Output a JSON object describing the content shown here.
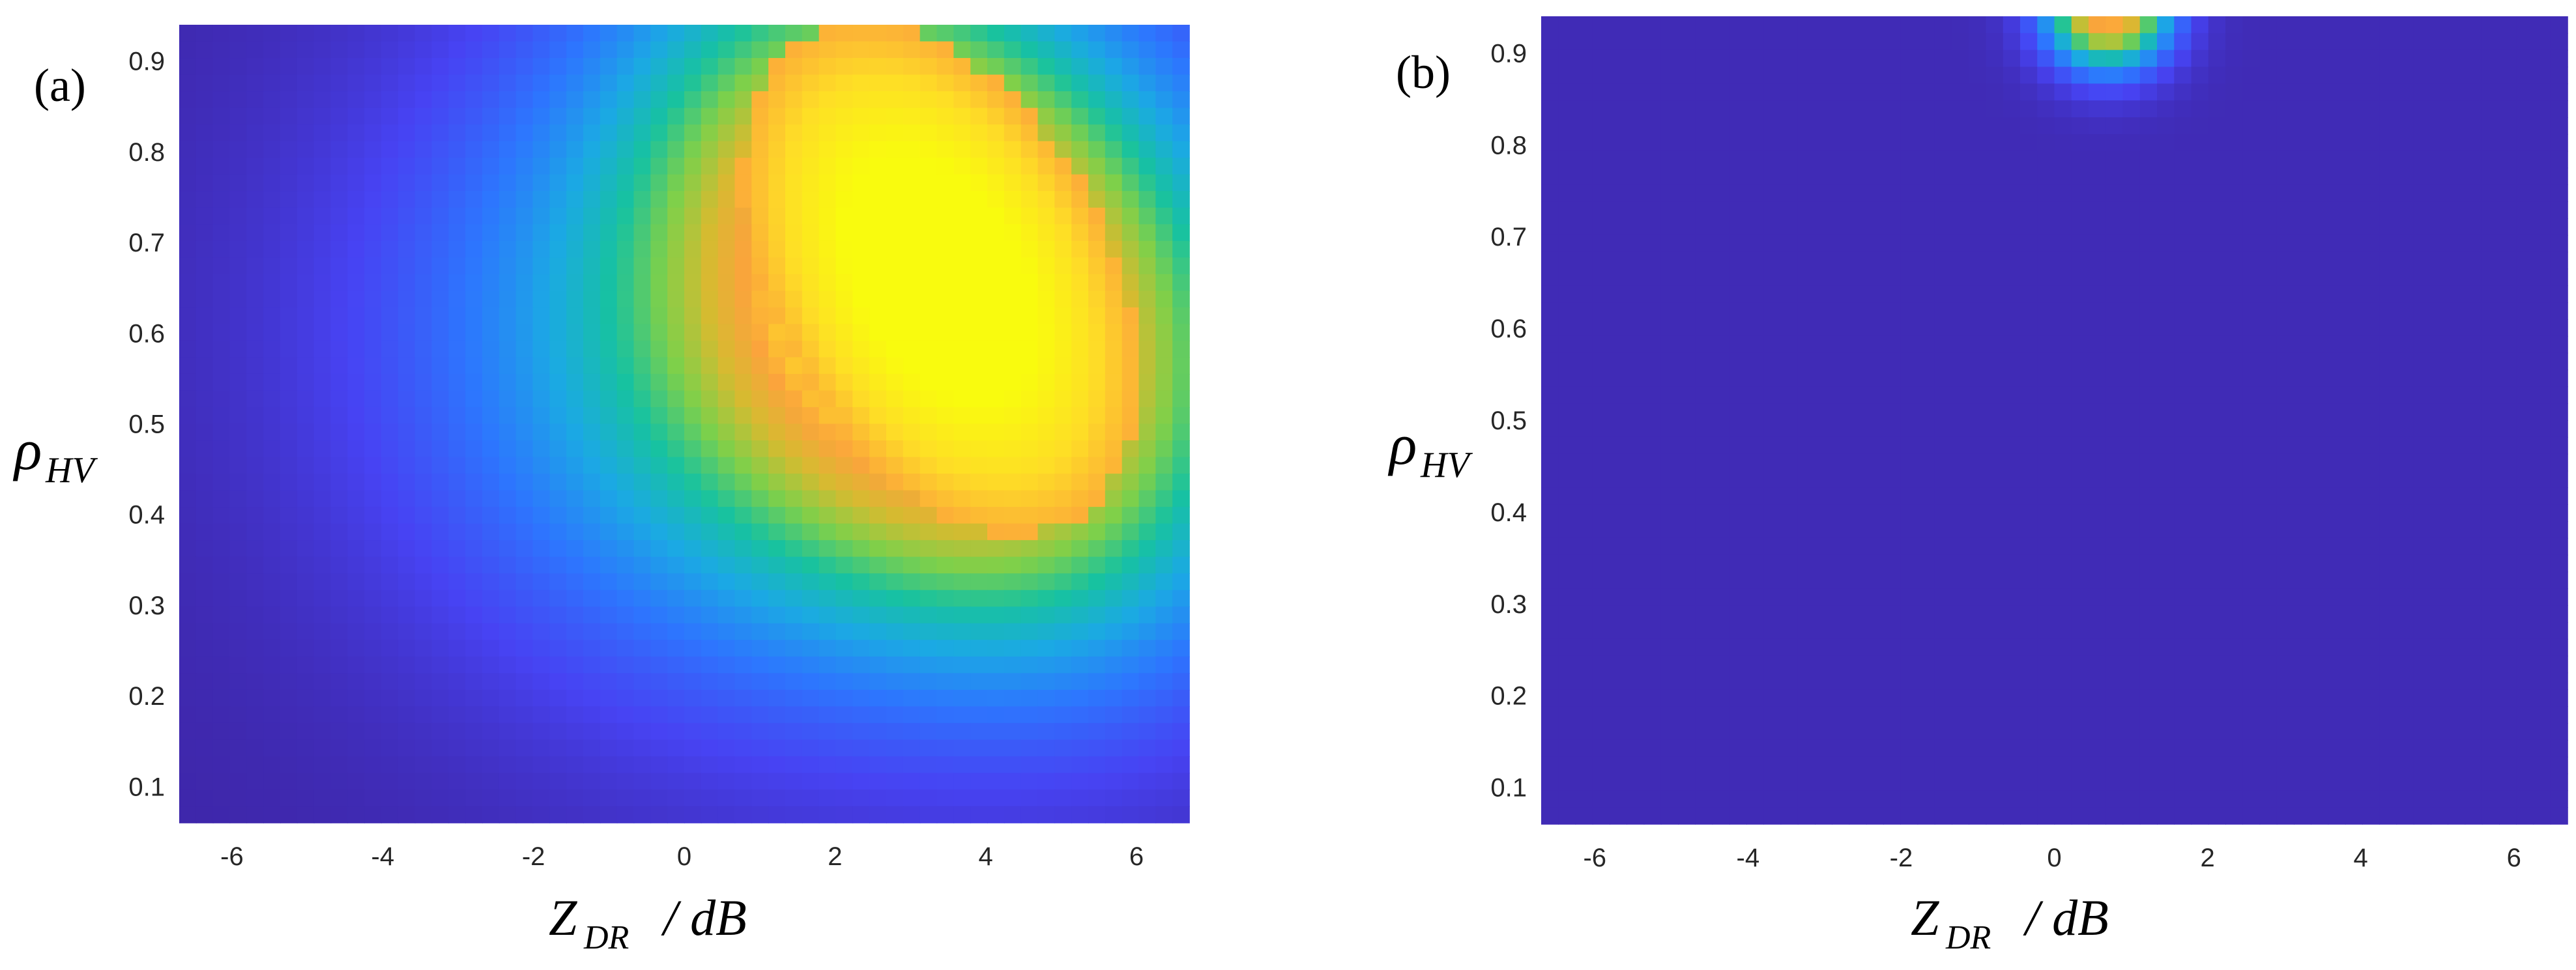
{
  "colors": {
    "colormap": [
      "#3e26a8",
      "#4743f3",
      "#2d76fe",
      "#1ba9e4",
      "#17c2a0",
      "#7ed04a",
      "#d5bb30",
      "#fba43c",
      "#fede26",
      "#f9fb0e"
    ]
  },
  "chart_data": [
    {
      "type": "heatmap",
      "panel_label": "(a)",
      "xlabel": "Z",
      "xlabel_sub": "DR",
      "xlabel_unit": "/ dB",
      "ylabel": "ρ",
      "ylabel_sub": "HV",
      "xlim": [
        -6.7,
        6.7
      ],
      "ylim": [
        0.06,
        0.94
      ],
      "xticks": [
        -6,
        -4,
        -2,
        0,
        2,
        4,
        6
      ],
      "yticks": [
        0.1,
        0.2,
        0.3,
        0.4,
        0.5,
        0.6,
        0.7,
        0.8,
        0.9
      ],
      "xtick_labels": [
        "-6",
        "-4",
        "-2",
        "0",
        "2",
        "4",
        "6"
      ],
      "ytick_labels": [
        "0.1",
        "0.2",
        "0.3",
        "0.4",
        "0.5",
        "0.6",
        "0.7",
        "0.8",
        "0.9"
      ],
      "peak": {
        "x": 3.5,
        "y": 0.68,
        "intensity": 1.0
      },
      "colorbar": false,
      "grid": false
    },
    {
      "type": "heatmap",
      "panel_label": "(b)",
      "xlabel": "Z",
      "xlabel_sub": "DR",
      "xlabel_unit": "/ dB",
      "ylabel": "ρ",
      "ylabel_sub": "HV",
      "xlim": [
        -6.7,
        6.7
      ],
      "ylim": [
        0.06,
        0.94
      ],
      "xticks": [
        -6,
        -4,
        -2,
        0,
        2,
        4,
        6
      ],
      "yticks": [
        0.1,
        0.2,
        0.3,
        0.4,
        0.5,
        0.6,
        0.7,
        0.8,
        0.9
      ],
      "xtick_labels": [
        "-6",
        "-4",
        "-2",
        "0",
        "2",
        "4",
        "6"
      ],
      "ytick_labels": [
        "0.1",
        "0.2",
        "0.3",
        "0.4",
        "0.5",
        "0.6",
        "0.7",
        "0.8",
        "0.9"
      ],
      "peak": {
        "x": 0.7,
        "y": 0.94,
        "intensity": 0.85
      },
      "colorbar": false,
      "grid": false
    }
  ]
}
